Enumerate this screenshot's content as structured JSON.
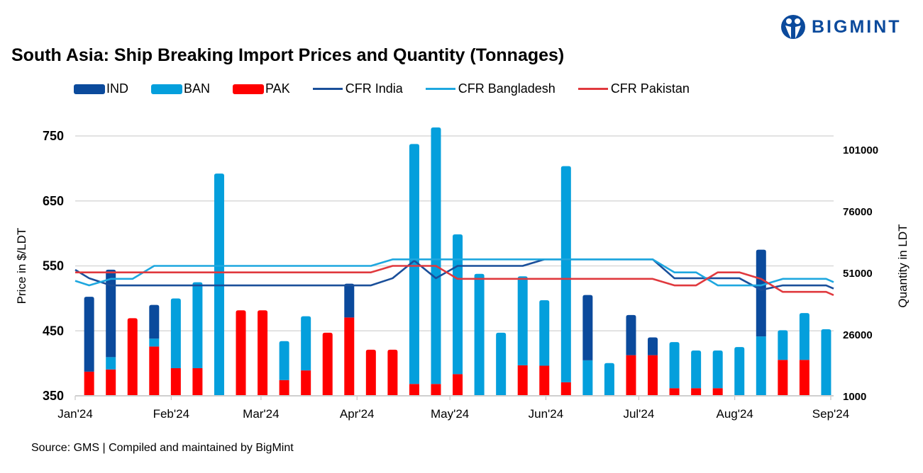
{
  "title": "South Asia: Ship Breaking Import Prices and Quantity (Tonnages)",
  "source": "Source: GMS | Compiled and maintained by BigMint",
  "logo": {
    "text": "BIGMINT",
    "icon": "bigmint-people-logo-icon",
    "color": "#0b4a9c"
  },
  "chart_data": {
    "type": "bar+line",
    "title": "South Asia: Ship Breaking Import Prices and Quantity (Tonnages)",
    "ylabel": "Price in $/LDT",
    "y2label": "Quantity in LDT",
    "ylim": [
      350,
      750
    ],
    "yticks": [
      "350",
      "450",
      "550",
      "650",
      "750"
    ],
    "y2lim": [
      1000,
      101000
    ],
    "y2ticks": [
      "1000",
      "26000",
      "51000",
      "76000",
      "101000"
    ],
    "xlim": [
      "2024-01-01",
      "2024-09-01"
    ],
    "xticks": [
      {
        "date": "2024-01-01",
        "label": "Jan'24"
      },
      {
        "date": "2024-02-01",
        "label": "Feb'24"
      },
      {
        "date": "2024-03-01",
        "label": "Mar'24"
      },
      {
        "date": "2024-04-01",
        "label": "Apr'24"
      },
      {
        "date": "2024-05-01",
        "label": "May'24"
      },
      {
        "date": "2024-06-01",
        "label": "Jun'24"
      },
      {
        "date": "2024-07-01",
        "label": "Jul'24"
      },
      {
        "date": "2024-08-01",
        "label": "Aug'24"
      },
      {
        "date": "2024-09-01",
        "label": "Sep'24"
      }
    ],
    "grid": true,
    "legend_position": "top",
    "bar_dates": [
      "2024-01-05",
      "2024-01-12",
      "2024-01-19",
      "2024-01-26",
      "2024-02-02",
      "2024-02-09",
      "2024-02-16",
      "2024-02-23",
      "2024-03-01",
      "2024-03-08",
      "2024-03-15",
      "2024-03-22",
      "2024-03-29",
      "2024-04-05",
      "2024-04-12",
      "2024-04-19",
      "2024-04-26",
      "2024-05-03",
      "2024-05-10",
      "2024-05-17",
      "2024-05-24",
      "2024-05-31",
      "2024-06-07",
      "2024-06-14",
      "2024-06-21",
      "2024-06-28",
      "2024-07-05",
      "2024-07-12",
      "2024-07-19",
      "2024-07-26",
      "2024-08-02",
      "2024-08-09",
      "2024-08-16",
      "2024-08-23",
      "2024-08-30"
    ],
    "bar_series": [
      {
        "name": "PAK",
        "color": "#ff0000",
        "values": [
          10800,
          11700,
          32500,
          21000,
          12200,
          12200,
          0,
          35700,
          35700,
          7400,
          11300,
          26600,
          32800,
          19700,
          19700,
          5800,
          5800,
          9800,
          0,
          0,
          13400,
          13200,
          6500,
          0,
          0,
          17500,
          17500,
          4100,
          4100,
          4100,
          0,
          0,
          15600,
          15600,
          0
        ]
      },
      {
        "name": "BAN",
        "color": "#049fdc",
        "values": [
          0,
          5000,
          0,
          3200,
          28300,
          34900,
          91200,
          0,
          0,
          15800,
          22000,
          0,
          0,
          0,
          0,
          97400,
          104100,
          56700,
          50500,
          26600,
          36100,
          26600,
          87700,
          15400,
          14300,
          0,
          0,
          18700,
          15300,
          15300,
          20800,
          25100,
          12000,
          19000,
          28000
        ]
      },
      {
        "name": "IND",
        "color": "#0b4a9c",
        "values": [
          30400,
          35500,
          0,
          13700,
          0,
          0,
          0,
          0,
          0,
          0,
          0,
          0,
          13700,
          0,
          0,
          0,
          0,
          0,
          0,
          0,
          0,
          0,
          0,
          26500,
          0,
          16300,
          7200,
          0,
          0,
          0,
          0,
          35200,
          0,
          0,
          0
        ]
      }
    ],
    "line_dates": [
      "2024-01-01",
      "2024-01-05",
      "2024-01-12",
      "2024-01-19",
      "2024-01-26",
      "2024-02-02",
      "2024-02-09",
      "2024-02-16",
      "2024-02-23",
      "2024-03-01",
      "2024-03-08",
      "2024-03-15",
      "2024-03-22",
      "2024-03-29",
      "2024-04-05",
      "2024-04-12",
      "2024-04-19",
      "2024-04-26",
      "2024-05-03",
      "2024-05-10",
      "2024-05-17",
      "2024-05-24",
      "2024-05-31",
      "2024-06-07",
      "2024-06-14",
      "2024-06-21",
      "2024-06-28",
      "2024-07-05",
      "2024-07-12",
      "2024-07-19",
      "2024-07-26",
      "2024-08-02",
      "2024-08-09",
      "2024-08-16",
      "2024-08-23",
      "2024-08-30",
      "2024-09-02"
    ],
    "line_series": [
      {
        "name": "CFR India",
        "color": "#1a4f9a",
        "values": [
          544,
          531,
          520,
          520,
          520,
          520,
          520,
          520,
          520,
          520,
          520,
          520,
          520,
          520,
          520,
          531,
          558,
          531,
          550,
          550,
          550,
          550,
          560,
          560,
          560,
          560,
          560,
          560,
          531,
          531,
          531,
          531,
          513,
          520,
          520,
          520,
          515
        ]
      },
      {
        "name": "CFR Bangladesh",
        "color": "#1ea7df",
        "values": [
          527,
          520,
          530,
          530,
          550,
          550,
          550,
          550,
          550,
          550,
          550,
          550,
          550,
          550,
          550,
          560,
          560,
          560,
          560,
          560,
          560,
          560,
          560,
          560,
          560,
          560,
          560,
          560,
          540,
          540,
          520,
          520,
          520,
          530,
          530,
          530,
          525
        ]
      },
      {
        "name": "CFR Pakistan",
        "color": "#e0393e",
        "values": [
          540,
          540,
          540,
          540,
          540,
          540,
          540,
          540,
          540,
          540,
          540,
          540,
          540,
          540,
          540,
          550,
          550,
          550,
          530,
          530,
          530,
          530,
          530,
          530,
          530,
          530,
          530,
          530,
          520,
          520,
          540,
          540,
          530,
          510,
          510,
          510,
          505
        ]
      }
    ]
  }
}
